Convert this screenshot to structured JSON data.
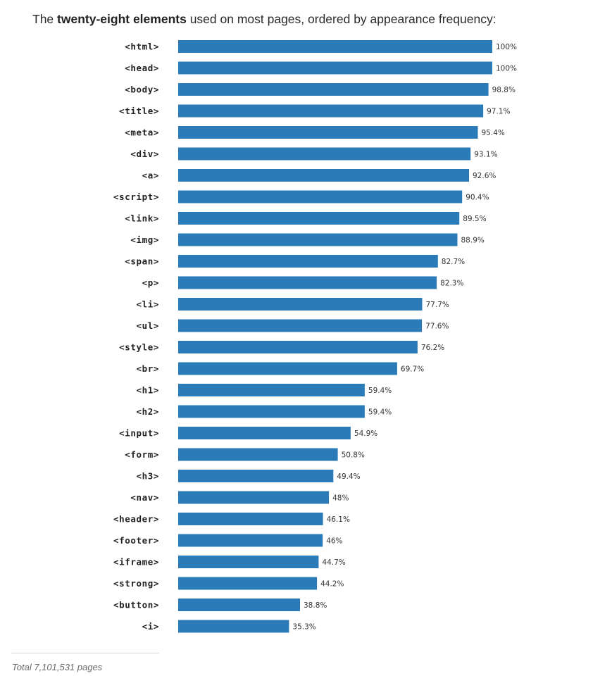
{
  "heading": {
    "prefix": "The ",
    "bold": "twenty-eight elements",
    "suffix": " used on most pages, ordered by appearance frequency:"
  },
  "chart_data": {
    "type": "bar",
    "orientation": "horizontal",
    "title": "",
    "xlabel": "",
    "ylabel": "",
    "xlim": [
      0,
      100
    ],
    "grid": false,
    "bar_color": "#2b7bb9",
    "categories": [
      "<html>",
      "<head>",
      "<body>",
      "<title>",
      "<meta>",
      "<div>",
      "<a>",
      "<script>",
      "<link>",
      "<img>",
      "<span>",
      "<p>",
      "<li>",
      "<ul>",
      "<style>",
      "<br>",
      "<h1>",
      "<h2>",
      "<input>",
      "<form>",
      "<h3>",
      "<nav>",
      "<header>",
      "<footer>",
      "<iframe>",
      "<strong>",
      "<button>",
      "<i>"
    ],
    "values": [
      100,
      100,
      98.8,
      97.1,
      95.4,
      93.1,
      92.6,
      90.4,
      89.5,
      88.9,
      82.7,
      82.3,
      77.7,
      77.6,
      76.2,
      69.7,
      59.4,
      59.4,
      54.9,
      50.8,
      49.4,
      48,
      46.1,
      46,
      44.7,
      44.2,
      38.8,
      35.3
    ],
    "value_labels": [
      "100%",
      "100%",
      "98.8%",
      "97.1%",
      "95.4%",
      "93.1%",
      "92.6%",
      "90.4%",
      "89.5%",
      "88.9%",
      "82.7%",
      "82.3%",
      "77.7%",
      "77.6%",
      "76.2%",
      "69.7%",
      "59.4%",
      "59.4%",
      "54.9%",
      "50.8%",
      "49.4%",
      "48%",
      "46.1%",
      "46%",
      "44.7%",
      "44.2%",
      "38.8%",
      "35.3%"
    ]
  },
  "footnote": "Total 7,101,531 pages"
}
